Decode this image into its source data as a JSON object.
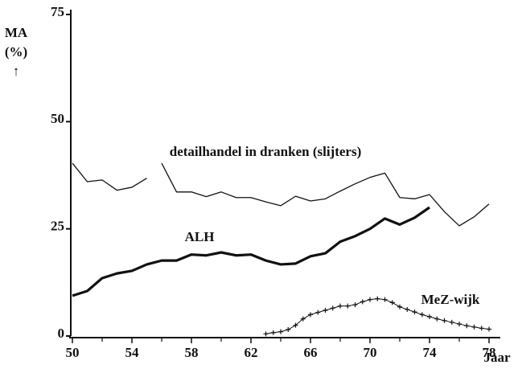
{
  "chart_data": {
    "type": "line",
    "y_label": [
      "MA",
      "(%)",
      "↑"
    ],
    "x_label": "Jaar",
    "xlim": [
      50,
      78
    ],
    "ylim": [
      0,
      75
    ],
    "xticks": [
      50,
      54,
      58,
      62,
      66,
      70,
      74,
      78
    ],
    "xminor_ticks": [
      52,
      56,
      60,
      64,
      68,
      72,
      76
    ],
    "yticks": [
      0,
      25,
      50,
      75
    ],
    "series": [
      {
        "name": "detailhandel in dranken (slijters)",
        "color": "#111111",
        "line_width": 1.3,
        "marker": "none",
        "x": [
          50,
          51,
          52,
          53,
          54,
          55,
          55.5,
          56,
          57,
          58,
          59,
          60,
          61,
          62,
          63,
          64,
          65,
          66,
          67,
          68,
          69,
          70,
          71,
          72,
          73,
          74,
          75,
          76,
          77,
          78
        ],
        "values": [
          40.3,
          36,
          36.4,
          34,
          34.7,
          36.8,
          null,
          40.3,
          33.6,
          33.6,
          32.5,
          33.6,
          32.3,
          32.3,
          31.3,
          30.4,
          32.6,
          31.5,
          32,
          33.8,
          35.5,
          37,
          38,
          32.3,
          32,
          33,
          29,
          25.7,
          27.8,
          30.8
        ]
      },
      {
        "name": "ALH",
        "color": "#111111",
        "line_width": 3.2,
        "marker": "none",
        "x": [
          50,
          51,
          52,
          53,
          54,
          55,
          56,
          57,
          58,
          59,
          60,
          61,
          62,
          63,
          64,
          65,
          66,
          67,
          68,
          69,
          70,
          71,
          72,
          73,
          74
        ],
        "values": [
          9.4,
          10.5,
          13.5,
          14.6,
          15.2,
          16.7,
          17.6,
          17.6,
          19,
          18.8,
          19.5,
          18.8,
          19,
          17.6,
          16.7,
          16.9,
          18.6,
          19.3,
          22,
          23.3,
          25,
          27.4,
          26,
          27.6,
          30
        ]
      },
      {
        "name": "MeZ-wijk",
        "color": "#111111",
        "line_width": 1,
        "marker": "plus",
        "x": [
          63,
          63.5,
          64,
          64.5,
          65,
          65.5,
          66,
          66.5,
          67,
          67.5,
          68,
          68.5,
          69,
          69.5,
          70,
          70.5,
          71,
          71.5,
          72,
          72.5,
          73,
          73.5,
          74,
          74.5,
          75,
          75.5,
          76,
          76.5,
          77,
          77.5,
          78
        ],
        "values": [
          0.5,
          0.8,
          1,
          1.5,
          2.5,
          4,
          5,
          5.5,
          6,
          6.5,
          7,
          7,
          7.3,
          8,
          8.5,
          8.7,
          8.5,
          7.8,
          6.8,
          6.2,
          5.6,
          5,
          4.5,
          4,
          3.6,
          3.2,
          2.8,
          2.4,
          2.1,
          1.8,
          1.6
        ]
      }
    ]
  }
}
